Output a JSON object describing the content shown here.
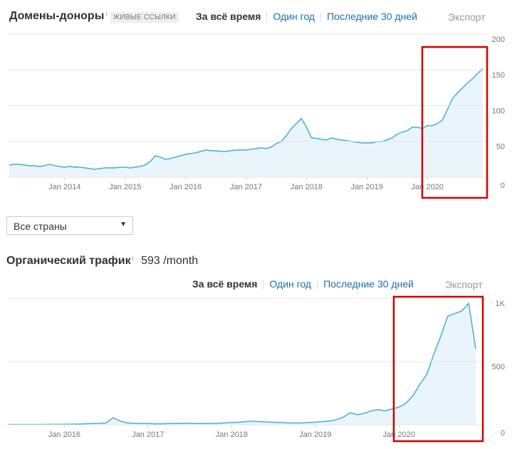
{
  "referring_domains": {
    "title": "Домены-доноры",
    "info": "i",
    "badge": "ЖИВЫЕ ССЫЛКИ",
    "tabs": [
      "За всё время",
      "Один год",
      "Последние 30 дней"
    ],
    "export": "Экспорт"
  },
  "country_select": "Все страны",
  "organic": {
    "title": "Органический трафик",
    "info": "i",
    "value": "593 /month",
    "tabs": [
      "За всё время",
      "Один год",
      "Последние 30 дней"
    ],
    "export": "Экспорт"
  },
  "chart_data": [
    {
      "type": "area",
      "color": "#4db3d9",
      "fill": "#eaf5fb",
      "grid": true,
      "xlim": [
        "2013-02",
        "2020-12"
      ],
      "xticks": [
        {
          "value": "2014-01",
          "label": "Jan 2014"
        },
        {
          "value": "2015-01",
          "label": "Jan 2015"
        },
        {
          "value": "2016-01",
          "label": "Jan 2016"
        },
        {
          "value": "2017-01",
          "label": "Jan 2017"
        },
        {
          "value": "2018-01",
          "label": "Jan 2018"
        },
        {
          "value": "2019-01",
          "label": "Jan 2019"
        },
        {
          "value": "2020-01",
          "label": "Jan 2020"
        }
      ],
      "ylim": [
        0,
        200
      ],
      "yticks": [
        0,
        50,
        100,
        150,
        200
      ],
      "x": [
        "2013-02",
        "2013-03",
        "2013-04",
        "2013-05",
        "2013-06",
        "2013-07",
        "2013-08",
        "2013-09",
        "2013-10",
        "2013-11",
        "2013-12",
        "2014-01",
        "2014-02",
        "2014-03",
        "2014-04",
        "2014-05",
        "2014-06",
        "2014-07",
        "2014-08",
        "2014-09",
        "2014-10",
        "2014-11",
        "2014-12",
        "2015-01",
        "2015-02",
        "2015-03",
        "2015-04",
        "2015-05",
        "2015-06",
        "2015-07",
        "2015-08",
        "2015-09",
        "2015-10",
        "2015-11",
        "2015-12",
        "2016-01",
        "2016-02",
        "2016-03",
        "2016-04",
        "2016-05",
        "2016-06",
        "2016-07",
        "2016-08",
        "2016-09",
        "2016-10",
        "2016-11",
        "2016-12",
        "2017-01",
        "2017-02",
        "2017-03",
        "2017-04",
        "2017-05",
        "2017-06",
        "2017-07",
        "2017-08",
        "2017-09",
        "2017-10",
        "2017-11",
        "2017-12",
        "2018-01",
        "2018-02",
        "2018-03",
        "2018-04",
        "2018-05",
        "2018-06",
        "2018-07",
        "2018-08",
        "2018-09",
        "2018-10",
        "2018-11",
        "2018-12",
        "2019-01",
        "2019-02",
        "2019-03",
        "2019-04",
        "2019-05",
        "2019-06",
        "2019-07",
        "2019-08",
        "2019-09",
        "2019-10",
        "2019-11",
        "2019-12",
        "2020-01",
        "2020-02",
        "2020-03",
        "2020-04",
        "2020-05",
        "2020-06",
        "2020-07",
        "2020-08",
        "2020-09",
        "2020-10",
        "2020-11",
        "2020-12"
      ],
      "values": [
        17,
        18,
        18,
        17,
        16,
        16,
        15,
        16,
        18,
        16,
        15,
        14,
        15,
        14,
        14,
        13,
        12,
        11,
        12,
        13,
        13,
        13,
        14,
        14,
        13,
        14,
        15,
        17,
        22,
        30,
        28,
        25,
        26,
        28,
        30,
        32,
        33,
        34,
        36,
        38,
        37,
        37,
        36,
        36,
        37,
        38,
        38,
        38,
        39,
        40,
        41,
        40,
        42,
        47,
        50,
        58,
        68,
        75,
        82,
        70,
        55,
        54,
        53,
        52,
        55,
        53,
        52,
        51,
        50,
        49,
        48,
        48,
        48,
        50,
        50,
        52,
        55,
        60,
        63,
        65,
        70,
        70,
        68,
        72,
        72,
        75,
        80,
        95,
        110,
        118,
        125,
        132,
        138,
        145,
        152
      ]
    },
    {
      "type": "area",
      "color": "#4db3d9",
      "fill": "#eaf5fb",
      "grid": true,
      "xlim": [
        "2015-05",
        "2020-12"
      ],
      "xticks": [
        {
          "value": "2016-01",
          "label": "Jan 2016"
        },
        {
          "value": "2017-01",
          "label": "Jan 2017"
        },
        {
          "value": "2018-01",
          "label": "Jan 2018"
        },
        {
          "value": "2019-01",
          "label": "Jan 2019"
        },
        {
          "value": "2020-01",
          "label": "Jan 2020"
        }
      ],
      "ylim": [
        0,
        1120
      ],
      "yticks": [
        0,
        500,
        {
          "value": 1000,
          "label": "1K"
        }
      ],
      "x": [
        "2015-05",
        "2015-06",
        "2015-07",
        "2015-08",
        "2015-09",
        "2015-10",
        "2015-11",
        "2015-12",
        "2016-01",
        "2016-02",
        "2016-03",
        "2016-04",
        "2016-05",
        "2016-06",
        "2016-07",
        "2016-08",
        "2016-09",
        "2016-10",
        "2016-11",
        "2016-12",
        "2017-01",
        "2017-02",
        "2017-03",
        "2017-04",
        "2017-05",
        "2017-06",
        "2017-07",
        "2017-08",
        "2017-09",
        "2017-10",
        "2017-11",
        "2017-12",
        "2018-01",
        "2018-02",
        "2018-03",
        "2018-04",
        "2018-05",
        "2018-06",
        "2018-07",
        "2018-08",
        "2018-09",
        "2018-10",
        "2018-11",
        "2018-12",
        "2019-01",
        "2019-02",
        "2019-03",
        "2019-04",
        "2019-05",
        "2019-06",
        "2019-07",
        "2019-08",
        "2019-09",
        "2019-10",
        "2019-11",
        "2019-12",
        "2020-01",
        "2020-02",
        "2020-03",
        "2020-04",
        "2020-05",
        "2020-06",
        "2020-07",
        "2020-08",
        "2020-09",
        "2020-10",
        "2020-11",
        "2020-12"
      ],
      "values": [
        3,
        3,
        3,
        3,
        3,
        3,
        4,
        4,
        4,
        5,
        6,
        8,
        10,
        12,
        15,
        56,
        30,
        15,
        12,
        10,
        10,
        8,
        8,
        10,
        10,
        12,
        12,
        10,
        10,
        10,
        12,
        15,
        18,
        20,
        25,
        28,
        25,
        22,
        20,
        18,
        15,
        14,
        15,
        18,
        20,
        25,
        30,
        40,
        60,
        95,
        80,
        90,
        110,
        120,
        110,
        125,
        140,
        170,
        230,
        320,
        400,
        560,
        700,
        860,
        880,
        900,
        960,
        600
      ]
    }
  ]
}
